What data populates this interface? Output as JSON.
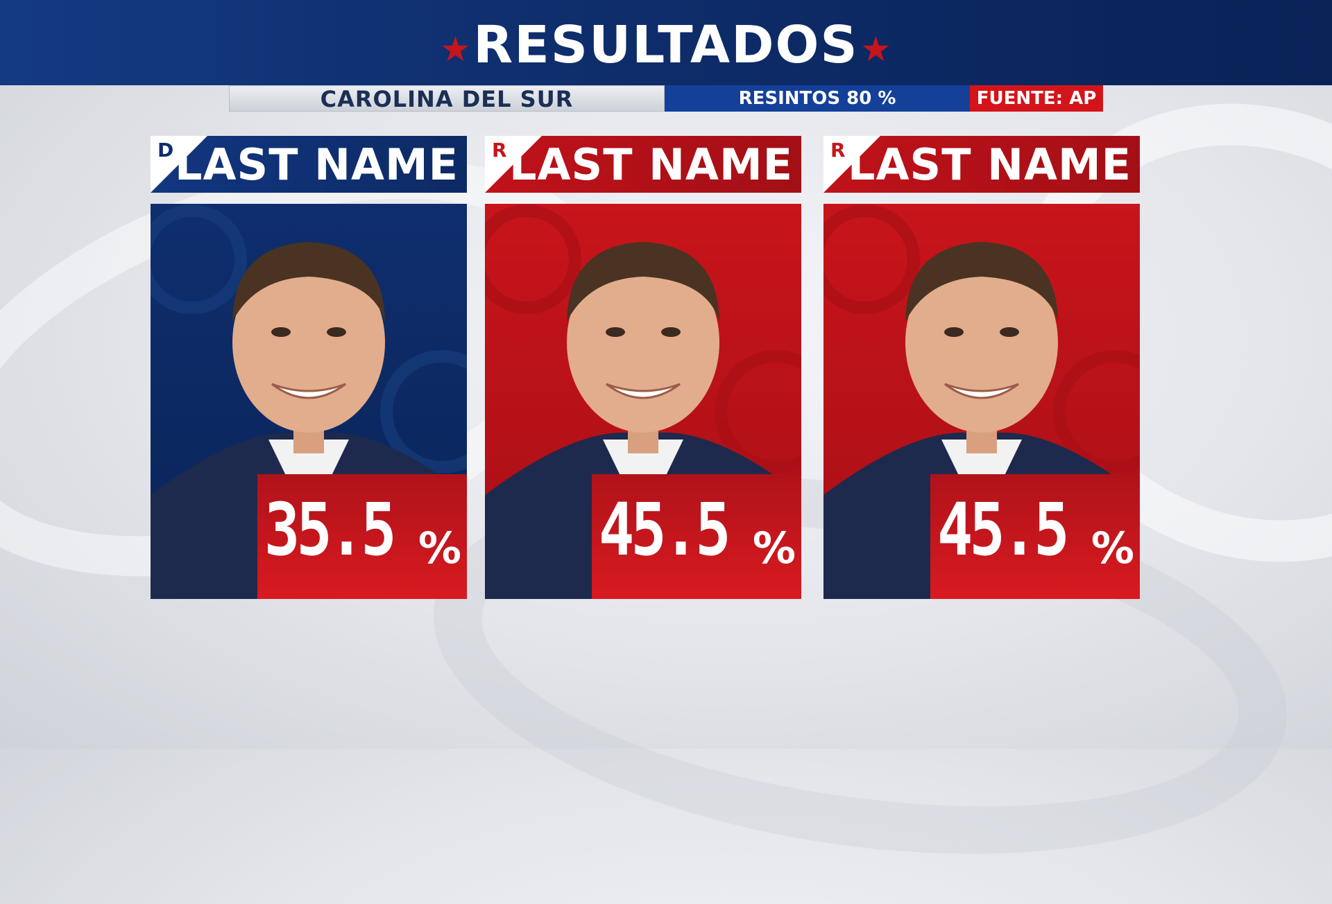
{
  "header": {
    "title": "RESULTADOS"
  },
  "subbar": {
    "state": "CAROLINA DEL SUR",
    "precincts": "RESINTOS 80 %",
    "source": "FUENTE: AP"
  },
  "colors": {
    "democrat": "#0f2e6e",
    "republican": "#c4161c",
    "accent_red": "#d3141a",
    "header_blue": "#0e2d6b"
  },
  "candidates": [
    {
      "party": "D",
      "name": "LAST NAME",
      "percent": "35.5",
      "percent_sign": "%"
    },
    {
      "party": "R",
      "name": "LAST NAME",
      "percent": "45.5",
      "percent_sign": "%"
    },
    {
      "party": "R",
      "name": "LAST NAME",
      "percent": "45.5",
      "percent_sign": "%"
    }
  ]
}
